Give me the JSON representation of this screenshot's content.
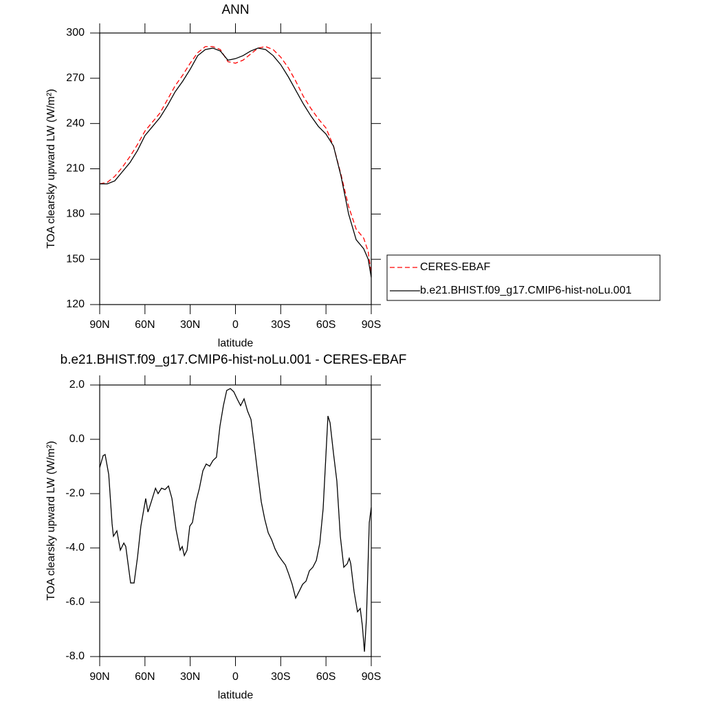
{
  "chart_data": [
    {
      "type": "line",
      "title": "ANN",
      "xlabel": "latitude",
      "ylabel": "TOA clearsky upward LW (W/m²)",
      "x": [
        90,
        85,
        80,
        75,
        70,
        65,
        60,
        55,
        50,
        45,
        40,
        35,
        30,
        25,
        20,
        15,
        10,
        5,
        0,
        -5,
        -10,
        -15,
        -20,
        -25,
        -30,
        -35,
        -40,
        -45,
        -50,
        -55,
        -60,
        -65,
        -70,
        -75,
        -80,
        -85,
        -88,
        -90
      ],
      "series": [
        {
          "name": "CERES-EBAF",
          "color": "#ff0000",
          "line_style": "dashed",
          "values": [
            200,
            201,
            205,
            211,
            218,
            226,
            235,
            241,
            247,
            256,
            265,
            272,
            280,
            287,
            291,
            291,
            289,
            281,
            280,
            282,
            286,
            290,
            291,
            289,
            284,
            277,
            268,
            258,
            250,
            243,
            237,
            225,
            206,
            185,
            170,
            164,
            155,
            140
          ]
        },
        {
          "name": "b.e21.BHIST.f09_g17.CMIP6-hist-noLu.001",
          "color": "#000000",
          "line_style": "solid",
          "values": [
            200,
            200,
            202,
            208,
            214,
            222,
            232,
            238,
            244,
            252,
            261,
            268,
            276,
            285,
            289,
            290,
            288,
            282,
            283,
            285,
            288,
            290,
            289,
            285,
            279,
            271,
            262,
            253,
            245,
            238,
            233,
            225,
            205,
            180,
            163,
            157,
            150,
            138
          ]
        }
      ],
      "xlim": [
        90,
        -90
      ],
      "xticks": [
        {
          "value": 90,
          "label": "90N"
        },
        {
          "value": 60,
          "label": "60N"
        },
        {
          "value": 30,
          "label": "30N"
        },
        0,
        {
          "value": -30,
          "label": "30S"
        },
        {
          "value": -60,
          "label": "60S"
        },
        {
          "value": -90,
          "label": "90S"
        }
      ],
      "ylim": [
        120,
        300
      ],
      "yticks": [
        120,
        150,
        180,
        210,
        240,
        270,
        300
      ],
      "legend": "right"
    },
    {
      "type": "line",
      "title": "b.e21.BHIST.f09_g17.CMIP6-hist-noLu.001 - CERES-EBAF",
      "xlabel": "latitude",
      "ylabel": "TOA clearsky upward LW (W/m²)",
      "x": [
        90,
        87.7,
        86.4,
        84,
        81.8,
        80.9,
        78.6,
        76.3,
        74,
        72.7,
        69.5,
        67.2,
        64.9,
        62.7,
        59.5,
        58,
        55.8,
        53,
        51.3,
        49,
        46.7,
        44.4,
        42.1,
        39.4,
        36.7,
        35.3,
        33.9,
        32.1,
        30.3,
        28.5,
        26.2,
        23.9,
        21.6,
        19.4,
        17.1,
        14.9,
        12.6,
        10.3,
        8,
        5.8,
        3.4,
        1.1,
        -1.1,
        -3.4,
        -5.7,
        -8,
        -10.3,
        -12.6,
        -14.8,
        -17.1,
        -19.4,
        -21.7,
        -24,
        -26.2,
        -28.5,
        -30.8,
        -33.1,
        -35.3,
        -37.6,
        -39.9,
        -42.2,
        -44.5,
        -46.8,
        -49,
        -51.3,
        -53.6,
        -55.9,
        -58.1,
        -60,
        -61.3,
        -62.7,
        -65,
        -67.2,
        -69.5,
        -71.8,
        -74.1,
        -75.4,
        -76.4,
        -78.6,
        -80.9,
        -82.7,
        -84.1,
        -85.5,
        -86.8,
        -88.7,
        -90
      ],
      "series": [
        {
          "color": "#000000",
          "line_style": "solid",
          "values": [
            -1.04,
            -0.6,
            -0.56,
            -1.3,
            -3.1,
            -3.57,
            -3.37,
            -4.08,
            -3.82,
            -3.95,
            -5.29,
            -5.29,
            -4.33,
            -3.2,
            -2.18,
            -2.68,
            -2.3,
            -1.8,
            -2.0,
            -1.8,
            -1.85,
            -1.72,
            -2.18,
            -3.32,
            -4.08,
            -3.95,
            -4.28,
            -4.08,
            -3.2,
            -3.06,
            -2.3,
            -1.8,
            -1.16,
            -0.91,
            -0.99,
            -0.78,
            -0.66,
            0.48,
            1.24,
            1.8,
            1.87,
            1.75,
            1.49,
            1.24,
            1.49,
            1.04,
            0.73,
            -0.28,
            -1.29,
            -2.3,
            -2.94,
            -3.44,
            -3.7,
            -4.03,
            -4.28,
            -4.46,
            -4.63,
            -4.96,
            -5.34,
            -5.85,
            -5.6,
            -5.34,
            -5.22,
            -4.84,
            -4.71,
            -4.46,
            -3.82,
            -2.56,
            -0.53,
            0.86,
            0.61,
            -0.53,
            -1.54,
            -3.57,
            -4.71,
            -4.58,
            -4.38,
            -4.58,
            -5.6,
            -6.35,
            -6.23,
            -6.86,
            -7.82,
            -6.61,
            -3.06,
            -2.51
          ]
        }
      ],
      "xlim": [
        90,
        -90
      ],
      "xticks": [
        {
          "value": 90,
          "label": "90N"
        },
        {
          "value": 60,
          "label": "60N"
        },
        {
          "value": 30,
          "label": "30N"
        },
        0,
        {
          "value": -30,
          "label": "30S"
        },
        {
          "value": -60,
          "label": "60S"
        },
        {
          "value": -90,
          "label": "90S"
        }
      ],
      "ylim": [
        -8,
        2
      ],
      "yticks": [
        {
          "value": -8,
          "label": "-8.0"
        },
        {
          "value": -6,
          "label": "-6.0"
        },
        {
          "value": -4,
          "label": "-4.0"
        },
        {
          "value": -2,
          "label": "-2.0"
        },
        {
          "value": 0,
          "label": "0.0"
        },
        {
          "value": 2,
          "label": "2.0"
        }
      ]
    }
  ]
}
